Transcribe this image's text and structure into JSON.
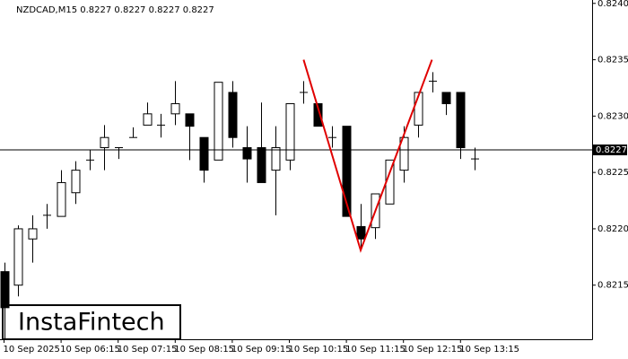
{
  "chart_data": {
    "type": "candlestick",
    "title": "NZDCAD,M15  0.8227 0.8227 0.8227 0.8227",
    "watermark": "InstaFintech",
    "categories": [
      "10 Sep 2025",
      null,
      null,
      null,
      "10 Sep 06:15",
      null,
      null,
      null,
      "10 Sep 07:15",
      null,
      null,
      null,
      "10 Sep 08:15",
      null,
      null,
      null,
      "10 Sep 09:15",
      null,
      null,
      null,
      "10 Sep 10:15",
      null,
      null,
      null,
      "10 Sep 11:15",
      null,
      null,
      null,
      "10 Sep 12:15",
      null,
      null,
      null,
      "10 Sep 13:15",
      null
    ],
    "open": [
      0.82162,
      0.8215,
      0.82191,
      0.82212,
      0.82211,
      0.82232,
      0.82261,
      0.82272,
      0.82272,
      0.82281,
      0.82292,
      0.82292,
      0.82302,
      0.82302,
      0.82281,
      0.82261,
      0.82321,
      0.82272,
      0.82272,
      0.82252,
      0.82261,
      0.82321,
      0.82311,
      0.82281,
      0.82291,
      0.82202,
      0.82201,
      0.82222,
      0.82252,
      0.82292,
      0.82331,
      0.82321,
      0.82321,
      0.82262
    ],
    "high": [
      0.8217,
      0.82203,
      0.82212,
      0.82222,
      0.82252,
      0.8226,
      0.8227,
      0.82292,
      0.82272,
      0.8229,
      0.82312,
      0.82302,
      0.82331,
      0.82302,
      0.82281,
      0.8233,
      0.82331,
      0.82291,
      0.82312,
      0.82291,
      0.82311,
      0.82331,
      0.82311,
      0.82291,
      0.82291,
      0.82222,
      0.82231,
      0.82261,
      0.82291,
      0.82321,
      0.82339,
      0.82321,
      0.82321,
      0.82272
    ],
    "low": [
      0.82102,
      0.8214,
      0.8217,
      0.822,
      0.82211,
      0.82222,
      0.82252,
      0.82252,
      0.82262,
      0.82281,
      0.82292,
      0.82281,
      0.82292,
      0.82261,
      0.82241,
      0.82261,
      0.82272,
      0.82241,
      0.82241,
      0.82212,
      0.82252,
      0.82311,
      0.82291,
      0.82272,
      0.82211,
      0.82181,
      0.82191,
      0.82222,
      0.82241,
      0.82281,
      0.82321,
      0.82301,
      0.82262,
      0.82252
    ],
    "close": [
      0.8213,
      0.822,
      0.822,
      0.82212,
      0.82241,
      0.82252,
      0.82261,
      0.82281,
      0.82272,
      0.82281,
      0.82302,
      0.82292,
      0.82311,
      0.82291,
      0.82252,
      0.8233,
      0.82281,
      0.82262,
      0.82241,
      0.82272,
      0.82311,
      0.82321,
      0.82291,
      0.82281,
      0.82211,
      0.82191,
      0.82231,
      0.82261,
      0.82281,
      0.82321,
      0.82331,
      0.82311,
      0.82272,
      0.82262
    ],
    "pattern": {
      "color": "#e00000",
      "x": [
        21,
        25,
        30
      ],
      "values": [
        0.8235,
        0.82181,
        0.8235
      ]
    },
    "last_price": 0.8227,
    "ylim": [
      0.82102,
      0.82403
    ],
    "yticks": [
      0.8215,
      {
        "value": 0.822,
        "label": "0.8220"
      },
      0.8225,
      {
        "value": 0.823,
        "label": "0.8230"
      },
      0.8235,
      {
        "value": 0.824,
        "label": "0.8240"
      }
    ]
  }
}
